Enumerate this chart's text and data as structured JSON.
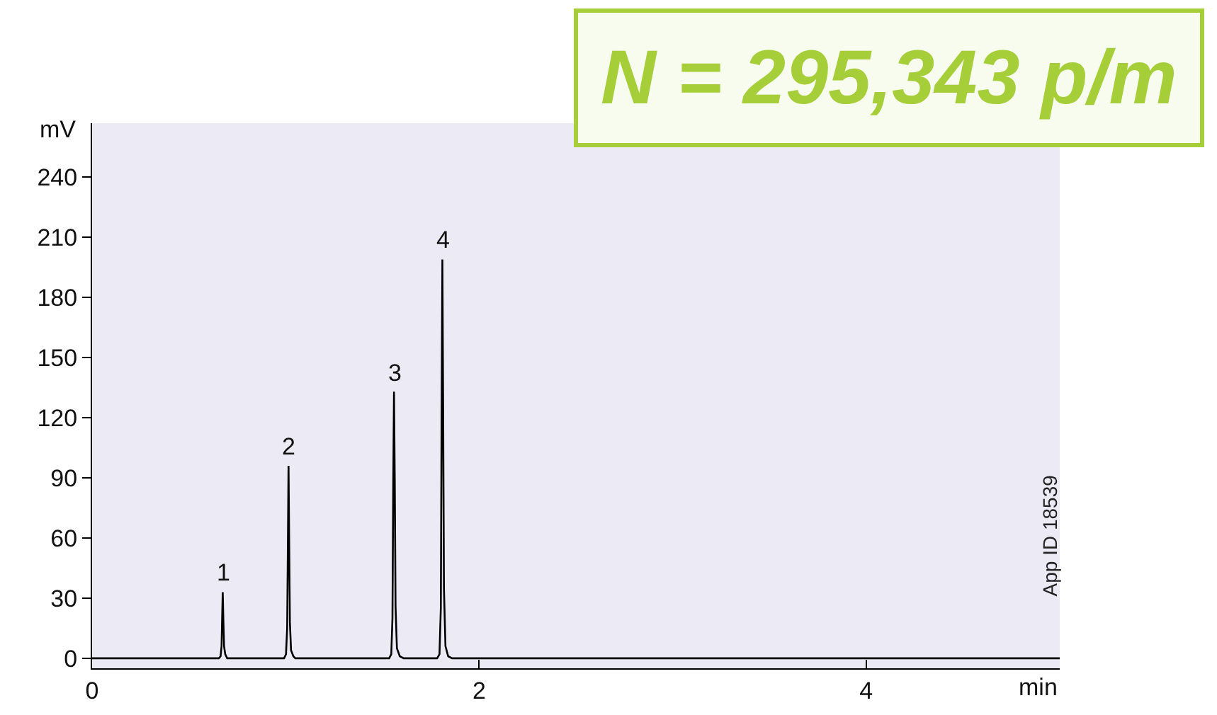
{
  "chart_data": {
    "type": "line",
    "xlabel": "min",
    "ylabel": "mV",
    "xlim": [
      0,
      5
    ],
    "xticks": [
      0,
      2,
      4
    ],
    "ylim": [
      -5,
      267
    ],
    "yticks": [
      0,
      30,
      60,
      90,
      120,
      150,
      180,
      210,
      240
    ],
    "grid": false,
    "x": [
      0,
      0.655,
      0.664,
      0.669,
      0.672,
      0.675,
      0.678,
      0.682,
      0.688,
      0.698,
      0.992,
      1.002,
      1.008,
      1.012,
      1.015,
      1.018,
      1.022,
      1.028,
      1.04,
      1.05,
      1.535,
      1.546,
      1.552,
      1.556,
      1.56,
      1.564,
      1.568,
      1.575,
      1.59,
      1.61,
      1.783,
      1.795,
      1.802,
      1.806,
      1.81,
      1.814,
      1.818,
      1.826,
      1.84,
      1.86,
      5
    ],
    "series": [
      {
        "color": "#000000",
        "values": [
          0,
          0,
          1,
          6,
          20,
          33,
          20,
          6,
          2,
          0,
          0,
          2,
          15,
          60,
          96,
          62,
          18,
          4,
          1,
          0,
          0,
          2,
          20,
          85,
          133,
          88,
          26,
          5,
          1,
          0,
          0,
          2,
          25,
          120,
          199,
          125,
          35,
          6,
          1,
          0,
          0
        ]
      }
    ],
    "annotations": [
      {
        "text": "1",
        "x": 0.675,
        "y": 33
      },
      {
        "text": "2",
        "x": 1.015,
        "y": 96
      },
      {
        "text": "3",
        "x": 1.56,
        "y": 133
      },
      {
        "text": "4",
        "x": 1.81,
        "y": 199
      },
      "N = 295,343 p/m",
      "App ID 18539"
    ]
  }
}
